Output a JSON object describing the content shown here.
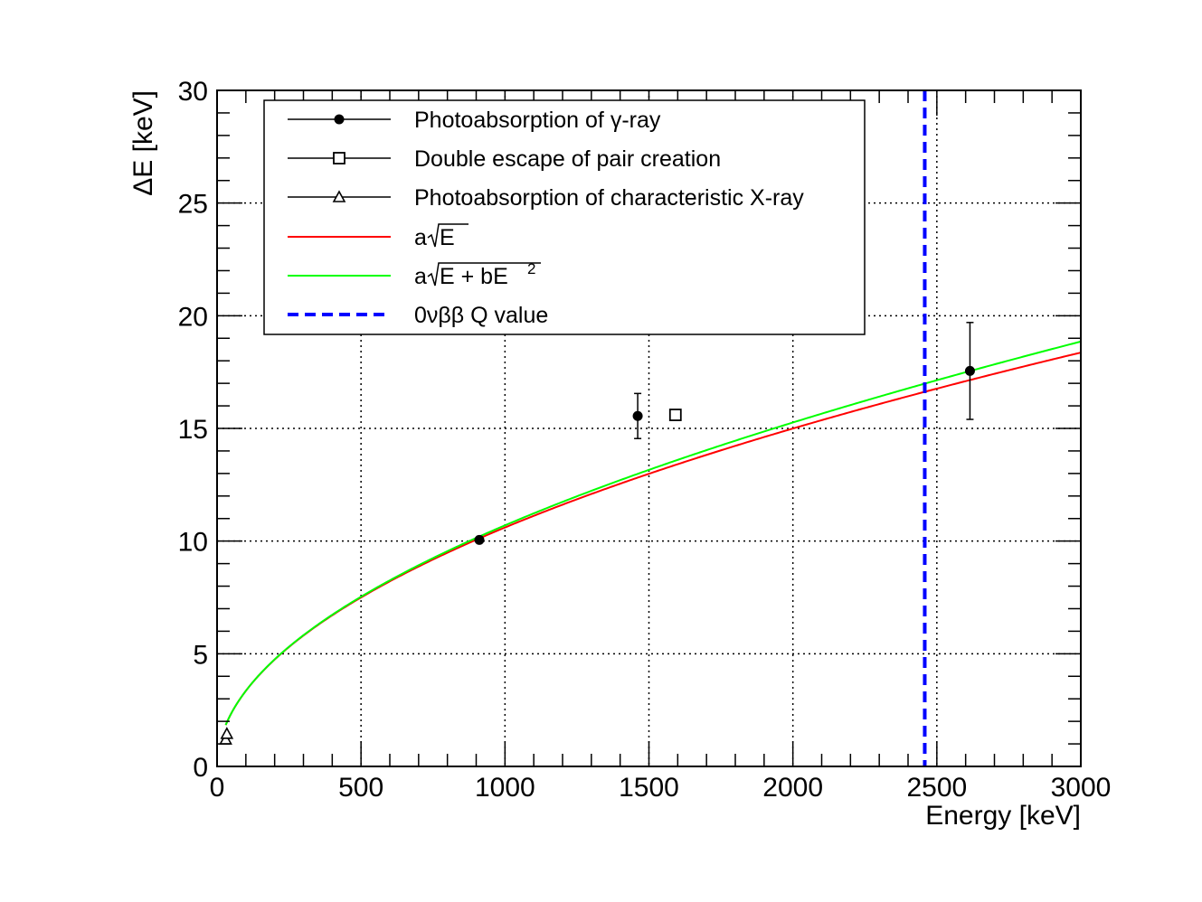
{
  "chart_data": {
    "type": "scatter",
    "title": "",
    "xlabel": "Energy [keV]",
    "ylabel": "ΔE [keV]",
    "xlim": [
      0,
      3000
    ],
    "ylim": [
      0,
      30
    ],
    "x_ticks": [
      0,
      500,
      1000,
      1500,
      2000,
      2500,
      3000
    ],
    "x_tick_labels": [
      "0",
      "500",
      "1000",
      "1500",
      "2000",
      "2500",
      "3000"
    ],
    "y_ticks": [
      0,
      5,
      10,
      15,
      20,
      25,
      30
    ],
    "y_tick_labels": [
      "0",
      "5",
      "10",
      "15",
      "20",
      "25",
      "30"
    ],
    "grid": true,
    "legend_position": "top",
    "series": [
      {
        "name": "Photoabsorption of γ-ray",
        "marker": "filled-circle",
        "color": "#000000",
        "points": [
          {
            "x": 911,
            "y": 10.05,
            "err": 0.1
          },
          {
            "x": 1461,
            "y": 15.55,
            "err": 1.0
          },
          {
            "x": 2615,
            "y": 17.55,
            "err": 2.15
          }
        ]
      },
      {
        "name": "Double escape of pair creation",
        "marker": "open-square",
        "color": "#000000",
        "points": [
          {
            "x": 1592,
            "y": 15.6
          }
        ]
      },
      {
        "name": "Photoabsorption of characteristic X-ray",
        "marker": "open-triangle",
        "color": "#000000",
        "points": [
          {
            "x": 30,
            "y": 1.2
          },
          {
            "x": 34,
            "y": 1.45
          }
        ]
      }
    ],
    "fits": [
      {
        "name": "a√E",
        "label_main": "a",
        "label_root": "E",
        "label_tail": "",
        "label_sup": "",
        "color": "#ff0000",
        "a": 0.3353,
        "b": 0
      },
      {
        "name": "a√(E + bE²)",
        "label_main": "a",
        "label_root": "E + bE",
        "label_tail": "",
        "label_sup": "2",
        "color": "#00ff00",
        "a": 0.3353,
        "b": 1.8e-05
      }
    ],
    "vline": {
      "name": "0νββ Q value",
      "x": 2458,
      "color": "#0000ff",
      "style": "dashed"
    }
  }
}
